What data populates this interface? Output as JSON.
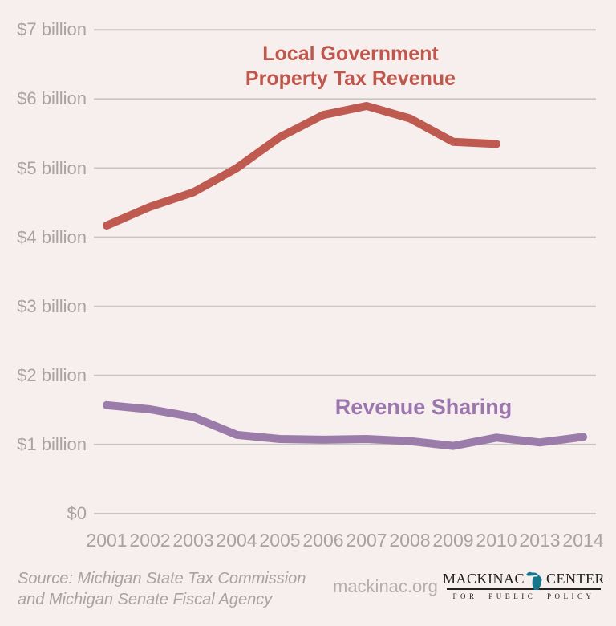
{
  "chart_data": {
    "type": "line",
    "title": "Local Government Property Tax Revenue",
    "categories": [
      "2001",
      "2002",
      "2003",
      "2004",
      "2005",
      "2006",
      "2007",
      "2008",
      "2009",
      "2010",
      "2013",
      "2014"
    ],
    "series": [
      {
        "name": "Local Government Property Tax Revenue",
        "color": "#bf5a51",
        "units": "billions USD",
        "values": [
          4.17,
          4.44,
          4.65,
          5.0,
          5.45,
          5.77,
          5.9,
          5.72,
          5.38,
          5.35,
          null,
          null
        ]
      },
      {
        "name": "Revenue Sharing",
        "color": "#9b7baa",
        "units": "billions USD",
        "values": [
          1.57,
          1.51,
          1.4,
          1.14,
          1.08,
          1.07,
          1.08,
          1.05,
          0.98,
          1.1,
          1.03,
          1.11
        ]
      }
    ],
    "xlabel": "",
    "ylabel": "",
    "ylim": [
      0,
      7
    ],
    "y_tick_labels": [
      "$7 billion",
      "$6 billion",
      "$5 billion",
      "$4 billion",
      "$3 billion",
      "$2 billion",
      "$1 billion",
      "$0"
    ],
    "grid": "horizontal",
    "legend": "inline-series-labels"
  },
  "labels": {
    "title_line1": "Local Government",
    "title_line2": "Property Tax Revenue",
    "revenue_sharing": "Revenue Sharing"
  },
  "footer": {
    "source_line1": "Source: Michigan State Tax Commission",
    "source_line2": "and Michigan Senate Fiscal Agency",
    "website": "mackinac.org",
    "logo": {
      "name_left": "MACKINAC",
      "name_right": "CENTER",
      "tagline": "FOR PUBLIC POLICY",
      "icon": "michigan-state-icon",
      "icon_color": "#17768c",
      "text_color": "#22221e"
    }
  },
  "colors": {
    "background": "#f6efed",
    "gridline": "#c9c3c1",
    "axis_text": "#a8a2a0",
    "title_text": "#bf574d",
    "property_tax_line": "#bf5a51",
    "revenue_sharing_line": "#9b7baa",
    "revenue_sharing_text": "#9b77ad"
  }
}
